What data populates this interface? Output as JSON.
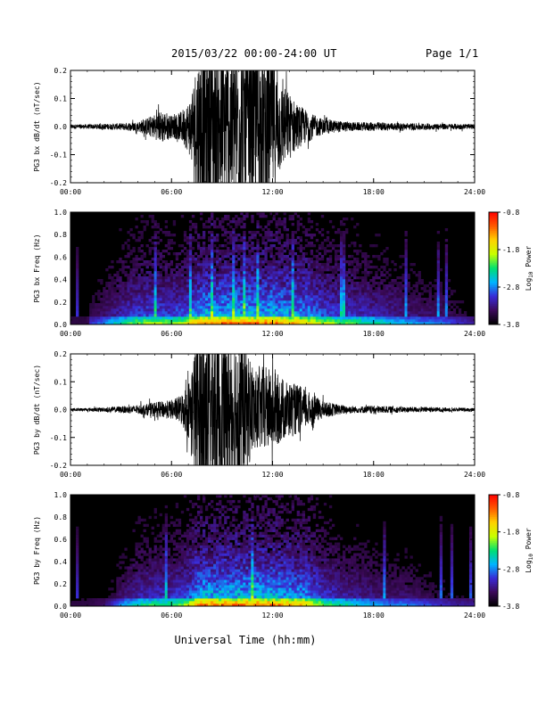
{
  "header": {
    "title": "2015/03/22  00:00-24:00 UT",
    "page": "Page 1/1"
  },
  "xaxis": {
    "label": "Universal Time (hh:mm)",
    "ticks": [
      "00:00",
      "06:00",
      "12:00",
      "18:00",
      "24:00"
    ],
    "range_hours": [
      0,
      24
    ]
  },
  "colors": {
    "trace": "#000000",
    "background": "#000000",
    "colorbar": [
      "#000000",
      "#3c0a5a",
      "#3a2bd6",
      "#00b4ff",
      "#00e070",
      "#c8ff00",
      "#ffd200",
      "#ff5a00",
      "#ff0000"
    ]
  },
  "chart_data": [
    {
      "type": "line",
      "name": "bx-waveform",
      "ylabel": "PG3 bx dB/dt (nT/sec)",
      "ylim": [
        -0.2,
        0.2
      ],
      "yticks": [
        "-0.2",
        "-0.1",
        "0.0",
        "0.1",
        "0.2"
      ],
      "yticks_values": [
        -0.2,
        -0.1,
        0.0,
        0.1,
        0.2
      ],
      "envelope": {
        "x_hours": [
          0,
          1,
          2,
          3,
          4,
          4.5,
          5,
          5.5,
          6,
          6.5,
          7,
          7.3,
          7.5,
          8,
          9,
          10,
          11,
          11.5,
          12,
          12.5,
          13,
          13.5,
          14,
          14.5,
          15,
          16,
          17,
          18,
          19,
          20,
          21,
          22,
          23,
          24
        ],
        "amplitude": [
          0.008,
          0.008,
          0.01,
          0.012,
          0.018,
          0.03,
          0.045,
          0.06,
          0.04,
          0.05,
          0.09,
          0.16,
          0.25,
          0.3,
          0.3,
          0.3,
          0.3,
          0.3,
          0.25,
          0.16,
          0.12,
          0.08,
          0.06,
          0.04,
          0.028,
          0.02,
          0.015,
          0.016,
          0.014,
          0.012,
          0.012,
          0.01,
          0.01,
          0.008
        ]
      }
    },
    {
      "type": "heatmap",
      "name": "bx-spectrogram",
      "ylabel": "PG3 bx Freq (Hz)",
      "ylim": [
        0.0,
        1.0
      ],
      "yticks": [
        "0.0",
        "0.2",
        "0.4",
        "0.6",
        "0.8",
        "1.0"
      ],
      "yticks_values": [
        0.0,
        0.2,
        0.4,
        0.6,
        0.8,
        1.0
      ],
      "colorbar": {
        "label": "Log10 Power",
        "label_main": "Log",
        "label_sub": "10",
        "label_rest": " Power",
        "range": [
          -3.8,
          -0.8
        ],
        "ticks": [
          "-0.8",
          "-1.8",
          "-2.8",
          "-3.8"
        ],
        "ticks_values": [
          -0.8,
          -1.8,
          -2.8,
          -3.8
        ]
      },
      "activity": {
        "x_hours": [
          0,
          1,
          1.2,
          2,
          3,
          4,
          5,
          6,
          7,
          7.5,
          8,
          9,
          10,
          11,
          12,
          13,
          14,
          15,
          16,
          17,
          18,
          19,
          20,
          21,
          22,
          23,
          24
        ],
        "level": [
          0.05,
          0.05,
          0.2,
          0.3,
          0.45,
          0.55,
          0.6,
          0.55,
          0.65,
          0.8,
          0.85,
          0.85,
          0.85,
          0.85,
          0.85,
          0.8,
          0.75,
          0.6,
          0.55,
          0.5,
          0.45,
          0.4,
          0.35,
          0.3,
          0.3,
          0.2,
          0.15
        ]
      }
    },
    {
      "type": "line",
      "name": "by-waveform",
      "ylabel": "PG3 by dB/dt (nT/sec)",
      "ylim": [
        -0.2,
        0.2
      ],
      "yticks": [
        "-0.2",
        "-0.1",
        "0.0",
        "0.1",
        "0.2"
      ],
      "yticks_values": [
        -0.2,
        -0.1,
        0.0,
        0.1,
        0.2
      ],
      "envelope": {
        "x_hours": [
          0,
          1,
          2,
          3,
          4,
          4.5,
          5,
          5.5,
          6,
          6.5,
          7,
          7.3,
          7.5,
          8,
          9,
          10,
          11,
          11.5,
          12,
          12.5,
          13,
          13.5,
          14,
          14.5,
          15,
          16,
          17,
          18,
          19,
          20,
          21,
          22,
          23,
          24
        ],
        "amplitude": [
          0.005,
          0.006,
          0.008,
          0.012,
          0.016,
          0.02,
          0.028,
          0.03,
          0.035,
          0.05,
          0.1,
          0.2,
          0.3,
          0.3,
          0.3,
          0.3,
          0.14,
          0.16,
          0.14,
          0.12,
          0.1,
          0.09,
          0.07,
          0.05,
          0.03,
          0.018,
          0.012,
          0.014,
          0.012,
          0.01,
          0.01,
          0.008,
          0.007,
          0.006
        ]
      }
    },
    {
      "type": "heatmap",
      "name": "by-spectrogram",
      "ylabel": "PG3 by Freq (Hz)",
      "ylim": [
        0.0,
        1.0
      ],
      "yticks": [
        "0.0",
        "0.2",
        "0.4",
        "0.6",
        "0.8",
        "1.0"
      ],
      "yticks_values": [
        0.0,
        0.2,
        0.4,
        0.6,
        0.8,
        1.0
      ],
      "colorbar": {
        "label": "Log10 Power",
        "label_main": "Log",
        "label_sub": "10",
        "label_rest": " Power",
        "range": [
          -3.8,
          -0.8
        ],
        "ticks": [
          "-0.8",
          "-1.8",
          "-2.8",
          "-3.8"
        ],
        "ticks_values": [
          -0.8,
          -1.8,
          -2.8,
          -3.8
        ]
      },
      "activity": {
        "x_hours": [
          0,
          1,
          2,
          3,
          4,
          5,
          6,
          7,
          7.5,
          8,
          9,
          10,
          11,
          12,
          13,
          14,
          15,
          16,
          17,
          18,
          19,
          20,
          21,
          22,
          23,
          24
        ],
        "level": [
          0.05,
          0.05,
          0.1,
          0.3,
          0.45,
          0.5,
          0.5,
          0.6,
          0.8,
          0.85,
          0.85,
          0.85,
          0.85,
          0.85,
          0.8,
          0.75,
          0.55,
          0.45,
          0.4,
          0.35,
          0.3,
          0.3,
          0.25,
          0.2,
          0.15,
          0.15
        ]
      }
    }
  ]
}
